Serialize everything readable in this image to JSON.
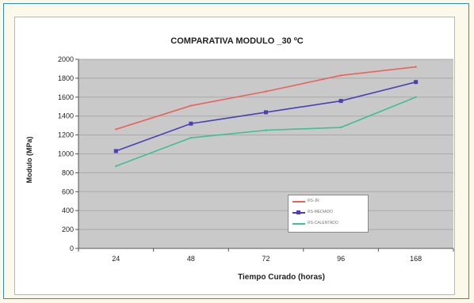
{
  "chart_data": {
    "type": "line",
    "title": "COMPARATIVA MODULO _30 ºC",
    "xlabel": "Tiempo Curado (horas)",
    "ylabel": "Modulo (MPa)",
    "categories": [
      "24",
      "48",
      "72",
      "96",
      "168"
    ],
    "ylim": [
      0,
      2000
    ],
    "yticks": [
      0,
      200,
      400,
      600,
      800,
      1000,
      1200,
      1400,
      1600,
      1800,
      2000
    ],
    "grid": true,
    "legend_position": "bottom-right",
    "series": [
      {
        "name": "RS-JR",
        "color": "#e8635c",
        "marker": "none",
        "values": [
          1260,
          1510,
          1660,
          1830,
          1920
        ]
      },
      {
        "name": "RS-MEDIADO",
        "color": "#4a3fb5",
        "marker": "square",
        "values": [
          1030,
          1320,
          1440,
          1560,
          1760
        ]
      },
      {
        "name": "RS-CALENTADO",
        "color": "#3fbf94",
        "marker": "none",
        "values": [
          870,
          1170,
          1250,
          1280,
          1600
        ]
      }
    ]
  }
}
